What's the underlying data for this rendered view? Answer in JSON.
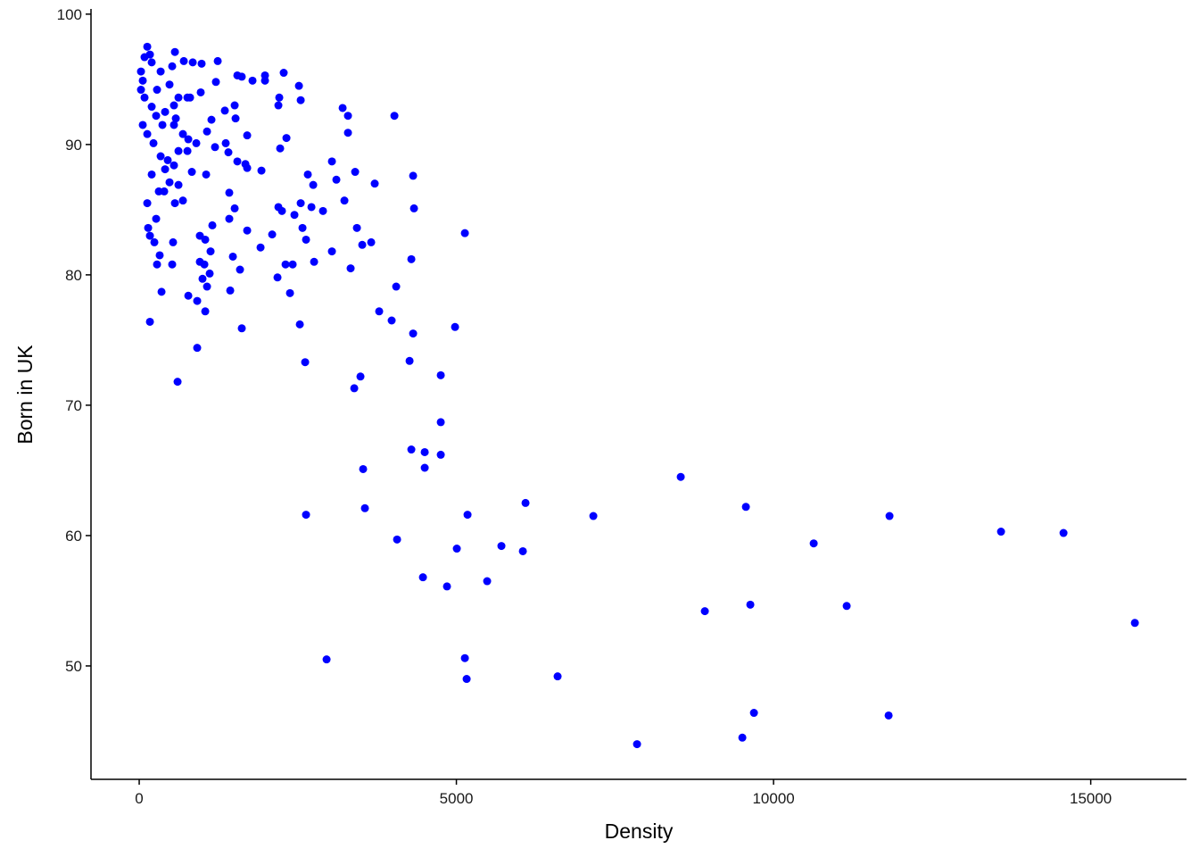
{
  "chart_data": {
    "type": "scatter",
    "x_label": "Density",
    "y_label": "Born in UK",
    "color": "#0000ff",
    "xlim": [
      -760,
      16510
    ],
    "ylim": [
      41.3,
      100.4
    ],
    "xticks": [
      0,
      5000,
      10000,
      15000
    ],
    "yticks": [
      50,
      60,
      70,
      80,
      90,
      100
    ],
    "grid": false,
    "x": [
      15696,
      14571,
      13586,
      11828,
      11814,
      11153,
      10633,
      9691,
      9634,
      9564,
      9508,
      8917,
      8537,
      7848,
      7159,
      6596,
      6090,
      6048,
      5710,
      5485,
      5176,
      5162,
      5134,
      5007,
      4852,
      4473,
      4065,
      2954,
      2630,
      3558,
      3530,
      4501,
      4501,
      4290,
      4754,
      4754,
      4754,
      3488,
      3390,
      4262,
      2616,
      4979,
      4318,
      3980,
      3783,
      2532,
      1617,
      605,
      914,
      169,
      5134,
      4051,
      4290,
      4332,
      4318,
      4023,
      3713,
      3657,
      3516,
      3432,
      3404,
      3333,
      3291,
      3291,
      3207,
      3235,
      3108,
      3038,
      3038,
      2897,
      2757,
      2743,
      2715,
      2658,
      2630,
      2574,
      2546,
      2518,
      2546,
      2447,
      2419,
      2377,
      2307,
      2321,
      2278,
      2250,
      2222,
      2194,
      2194,
      2208,
      2180,
      2096,
      1983,
      1983,
      1927,
      1913,
      1786,
      1702,
      1702,
      1702,
      1674,
      1617,
      1589,
      1547,
      1547,
      1519,
      1505,
      1477,
      1505,
      1420,
      1420,
      1435,
      1406,
      1364,
      1350,
      1209,
      1238,
      1139,
      1195,
      1153,
      1125,
      1069,
      1055,
      1041,
      1111,
      1069,
      1041,
      1027,
      998,
      956,
      956,
      970,
      984,
      914,
      844,
      830,
      774,
      774,
      760,
      703,
      689,
      619,
      563,
      563,
      534,
      520,
      548,
      520,
      352,
      281,
      239,
      141,
      169,
      127,
      169,
      127,
      56,
      28,
      84,
      197,
      267,
      56,
      127,
      225,
      338,
      408,
      478,
      309,
      197,
      338,
      478,
      619,
      408,
      548,
      689,
      281,
      28,
      84,
      197,
      366,
      450,
      619,
      267,
      394,
      323,
      760,
      900,
      548,
      577,
      802
    ],
    "y": [
      53.3,
      60.2,
      60.3,
      61.5,
      46.2,
      54.6,
      59.4,
      46.4,
      54.7,
      62.2,
      44.5,
      54.2,
      64.5,
      44.0,
      61.5,
      49.2,
      62.5,
      58.8,
      59.2,
      56.5,
      61.6,
      49.0,
      50.6,
      59.0,
      56.1,
      56.8,
      59.7,
      50.5,
      61.6,
      62.1,
      65.1,
      65.2,
      66.4,
      66.6,
      66.2,
      68.7,
      72.3,
      72.2,
      71.3,
      73.4,
      73.3,
      76.0,
      75.5,
      76.5,
      77.2,
      76.2,
      75.9,
      71.8,
      74.4,
      76.4,
      83.2,
      79.1,
      81.2,
      85.1,
      87.6,
      92.2,
      87.0,
      82.5,
      82.3,
      83.6,
      87.9,
      80.5,
      90.9,
      92.2,
      92.8,
      85.7,
      87.3,
      88.7,
      81.8,
      84.9,
      81.0,
      86.9,
      85.2,
      87.7,
      82.7,
      83.6,
      85.5,
      94.5,
      93.4,
      84.6,
      80.8,
      78.6,
      80.8,
      90.5,
      95.5,
      84.9,
      89.7,
      85.2,
      93.0,
      93.6,
      79.8,
      83.1,
      94.9,
      95.3,
      88.0,
      82.1,
      94.9,
      90.7,
      83.4,
      88.2,
      88.5,
      95.2,
      80.4,
      95.3,
      88.7,
      92.0,
      93.0,
      81.4,
      85.1,
      86.3,
      84.3,
      78.8,
      89.4,
      90.1,
      92.6,
      94.8,
      96.4,
      91.9,
      89.8,
      83.8,
      81.8,
      91.0,
      87.7,
      82.7,
      80.1,
      79.1,
      77.2,
      80.8,
      79.7,
      81.0,
      83.0,
      94.0,
      96.2,
      78.0,
      96.3,
      87.9,
      90.4,
      78.4,
      93.6,
      96.4,
      85.7,
      86.9,
      97.1,
      85.5,
      82.5,
      80.8,
      88.4,
      96.0,
      78.7,
      80.8,
      82.5,
      83.6,
      83.0,
      85.5,
      96.9,
      97.5,
      94.9,
      94.2,
      93.6,
      92.9,
      92.2,
      91.5,
      90.8,
      90.1,
      89.1,
      88.1,
      87.1,
      86.4,
      96.3,
      95.6,
      94.6,
      93.6,
      92.5,
      91.5,
      90.8,
      94.2,
      95.6,
      96.7,
      87.7,
      91.5,
      88.8,
      89.5,
      84.3,
      86.4,
      81.5,
      89.5,
      90.1,
      93.0,
      92.0,
      93.6
    ]
  }
}
